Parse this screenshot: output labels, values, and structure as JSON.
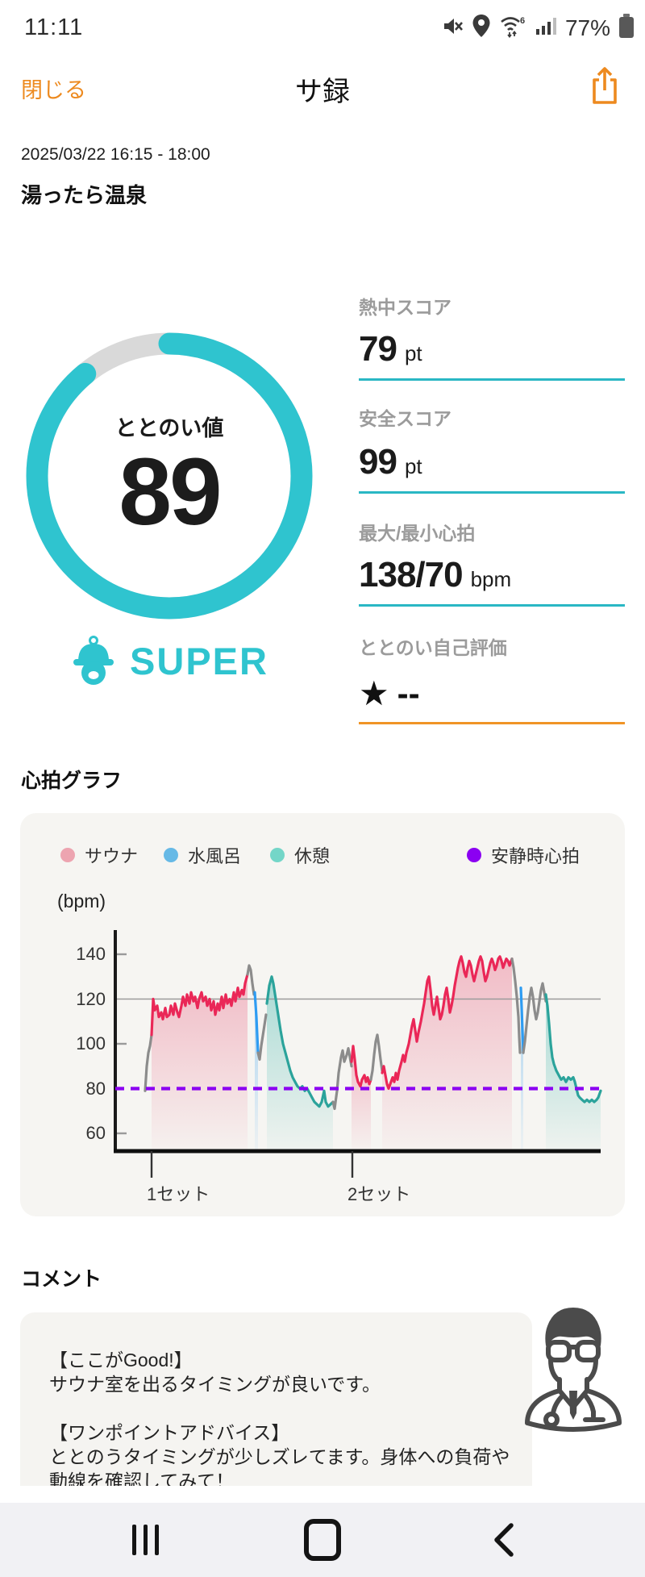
{
  "status_bar": {
    "time": "11:11",
    "battery": "77%"
  },
  "header": {
    "close_label": "閉じる",
    "title": "サ録"
  },
  "session": {
    "datetime": "2025/03/22 16:15 - 18:00",
    "facility": "湯ったら温泉"
  },
  "gauge": {
    "label": "ととのい値",
    "value": "89",
    "percent": 89,
    "rank": "SUPER",
    "ring_color": "#2fc4cf",
    "track_color": "#d9d9d9"
  },
  "stats": [
    {
      "label": "熱中スコア",
      "value": "79",
      "unit": "pt",
      "rule_color": "#2ab7c4"
    },
    {
      "label": "安全スコア",
      "value": "99",
      "unit": "pt",
      "rule_color": "#2ab7c4"
    },
    {
      "label": "最大/最小心拍",
      "value": "138/70",
      "unit": "bpm",
      "rule_color": "#2ab7c4"
    },
    {
      "label": "ととのい自己評価",
      "star": "★",
      "value": "--",
      "unit": "",
      "rule_color": "#f09426"
    }
  ],
  "heart_rate_section": {
    "title": "心拍グラフ"
  },
  "chart_data": {
    "type": "area",
    "title": "心拍グラフ",
    "ylabel": "(bpm)",
    "unit_label": "(bpm)",
    "y_ticks": [
      140,
      120,
      100,
      80,
      60
    ],
    "ylim": [
      52,
      150
    ],
    "threshold_line_bpm": 120,
    "resting_hr_bpm": 80,
    "x_ticks": [
      {
        "label": "1セット",
        "x": 45
      },
      {
        "label": "2セット",
        "x": 294
      }
    ],
    "legend": [
      {
        "label": "サウナ",
        "color": "#eda4b0"
      },
      {
        "label": "水風呂",
        "color": "#66b9e6"
      },
      {
        "label": "休憩",
        "color": "#74d6c8"
      },
      {
        "label": "安静時心拍",
        "color": "#8b00f2"
      }
    ],
    "series_colors": {
      "sauna": "#ea2757",
      "bath": "#2e9cf2",
      "rest": "#2ba39b",
      "transition": "#8c8c8c"
    },
    "fill_colors": {
      "sauna": "#e95d7e",
      "bath": "#49a8ef",
      "rest": "#35b3a8"
    },
    "segments": [
      {
        "kind": "transition",
        "points": [
          [
            37,
            79
          ],
          [
            39,
            90
          ],
          [
            41,
            96
          ],
          [
            43,
            99
          ],
          [
            45,
            104
          ]
        ]
      },
      {
        "kind": "sauna",
        "points": [
          [
            45,
            104
          ],
          [
            47,
            120
          ],
          [
            49,
            115
          ],
          [
            52,
            117
          ],
          [
            54,
            112
          ],
          [
            57,
            114
          ],
          [
            59,
            111
          ],
          [
            62,
            116
          ],
          [
            64,
            112
          ],
          [
            67,
            113
          ],
          [
            69,
            117
          ],
          [
            72,
            113
          ],
          [
            74,
            118
          ],
          [
            77,
            114
          ],
          [
            79,
            112
          ],
          [
            82,
            117
          ],
          [
            84,
            121
          ],
          [
            87,
            117
          ],
          [
            89,
            122
          ],
          [
            92,
            118
          ],
          [
            94,
            123
          ],
          [
            97,
            119
          ],
          [
            99,
            121
          ],
          [
            102,
            116
          ],
          [
            104,
            120
          ],
          [
            107,
            123
          ],
          [
            109,
            119
          ],
          [
            112,
            121
          ],
          [
            114,
            117
          ],
          [
            117,
            120
          ],
          [
            119,
            115
          ],
          [
            122,
            119
          ],
          [
            124,
            113
          ],
          [
            127,
            118
          ],
          [
            129,
            115
          ],
          [
            132,
            121
          ],
          [
            134,
            116
          ],
          [
            137,
            122
          ],
          [
            139,
            118
          ],
          [
            142,
            120
          ],
          [
            144,
            117
          ],
          [
            147,
            123
          ],
          [
            149,
            119
          ],
          [
            152,
            125
          ],
          [
            154,
            121
          ],
          [
            157,
            124
          ],
          [
            159,
            122
          ],
          [
            161,
            127
          ],
          [
            164,
            131
          ]
        ]
      },
      {
        "kind": "transition",
        "points": [
          [
            164,
            131
          ],
          [
            166,
            135
          ],
          [
            168,
            133
          ],
          [
            170,
            127
          ],
          [
            172,
            122
          ]
        ]
      },
      {
        "kind": "bath",
        "points": [
          [
            173,
            123
          ],
          [
            175,
            112
          ],
          [
            176,
            104
          ],
          [
            177,
            96
          ]
        ]
      },
      {
        "kind": "transition",
        "points": [
          [
            177,
            96
          ],
          [
            179,
            93
          ],
          [
            181,
            99
          ],
          [
            184,
            106
          ],
          [
            187,
            113
          ]
        ]
      },
      {
        "kind": "rest",
        "points": [
          [
            188,
            118
          ],
          [
            191,
            126
          ],
          [
            194,
            130
          ],
          [
            196,
            127
          ],
          [
            199,
            120
          ],
          [
            202,
            113
          ],
          [
            205,
            106
          ],
          [
            208,
            100
          ],
          [
            211,
            96
          ],
          [
            214,
            92
          ],
          [
            217,
            88
          ],
          [
            220,
            85
          ],
          [
            223,
            83
          ],
          [
            226,
            81
          ],
          [
            229,
            80
          ],
          [
            232,
            81
          ],
          [
            235,
            79
          ],
          [
            238,
            80
          ],
          [
            241,
            78
          ],
          [
            244,
            76
          ],
          [
            247,
            74
          ],
          [
            250,
            73
          ],
          [
            253,
            72
          ],
          [
            256,
            74
          ],
          [
            259,
            79
          ],
          [
            261,
            74
          ],
          [
            264,
            72
          ],
          [
            267,
            73
          ],
          [
            270,
            74
          ]
        ]
      },
      {
        "kind": "transition",
        "points": [
          [
            270,
            74
          ],
          [
            272,
            71
          ],
          [
            275,
            79
          ],
          [
            277,
            87
          ],
          [
            280,
            94
          ],
          [
            282,
            97
          ],
          [
            284,
            92
          ],
          [
            287,
            95
          ],
          [
            289,
            98
          ],
          [
            291,
            94
          ],
          [
            293,
            90
          ]
        ]
      },
      {
        "kind": "sauna",
        "points": [
          [
            293,
            92
          ],
          [
            295,
            99
          ],
          [
            297,
            93
          ],
          [
            299,
            86
          ],
          [
            301,
            83
          ],
          [
            304,
            81
          ],
          [
            306,
            84
          ],
          [
            309,
            86
          ],
          [
            311,
            83
          ],
          [
            313,
            85
          ],
          [
            315,
            82
          ],
          [
            317,
            84
          ]
        ]
      },
      {
        "kind": "transition",
        "points": [
          [
            317,
            84
          ],
          [
            319,
            88
          ],
          [
            321,
            95
          ],
          [
            323,
            101
          ],
          [
            325,
            104
          ],
          [
            327,
            99
          ],
          [
            329,
            93
          ],
          [
            331,
            88
          ]
        ]
      },
      {
        "kind": "sauna",
        "points": [
          [
            331,
            87
          ],
          [
            333,
            90
          ],
          [
            335,
            86
          ],
          [
            337,
            82
          ],
          [
            339,
            80
          ],
          [
            341,
            82
          ],
          [
            344,
            85
          ],
          [
            346,
            83
          ],
          [
            348,
            87
          ],
          [
            350,
            84
          ],
          [
            352,
            88
          ],
          [
            355,
            92
          ],
          [
            357,
            95
          ],
          [
            359,
            92
          ],
          [
            361,
            96
          ],
          [
            364,
            100
          ],
          [
            366,
            104
          ],
          [
            368,
            108
          ],
          [
            370,
            111
          ],
          [
            372,
            106
          ],
          [
            374,
            101
          ],
          [
            376,
            105
          ],
          [
            379,
            110
          ],
          [
            381,
            114
          ],
          [
            383,
            118
          ],
          [
            385,
            123
          ],
          [
            387,
            128
          ],
          [
            389,
            130
          ],
          [
            391,
            124
          ],
          [
            393,
            117
          ],
          [
            395,
            113
          ],
          [
            397,
            117
          ],
          [
            399,
            121
          ],
          [
            401,
            116
          ],
          [
            403,
            111
          ],
          [
            405,
            113
          ],
          [
            407,
            117
          ],
          [
            409,
            122
          ],
          [
            411,
            125
          ],
          [
            413,
            120
          ],
          [
            415,
            114
          ],
          [
            417,
            117
          ],
          [
            419,
            121
          ],
          [
            421,
            126
          ],
          [
            423,
            130
          ],
          [
            425,
            134
          ],
          [
            427,
            137
          ],
          [
            429,
            139
          ],
          [
            431,
            136
          ],
          [
            433,
            132
          ],
          [
            435,
            130
          ],
          [
            437,
            134
          ],
          [
            439,
            137
          ],
          [
            441,
            135
          ],
          [
            443,
            131
          ],
          [
            445,
            128
          ],
          [
            447,
            131
          ],
          [
            449,
            134
          ],
          [
            451,
            137
          ],
          [
            453,
            139
          ],
          [
            455,
            137
          ],
          [
            457,
            132
          ],
          [
            459,
            128
          ],
          [
            461,
            130
          ],
          [
            463,
            133
          ],
          [
            465,
            136
          ],
          [
            467,
            138
          ],
          [
            469,
            136
          ],
          [
            471,
            133
          ],
          [
            473,
            135
          ],
          [
            475,
            138
          ],
          [
            477,
            139
          ],
          [
            479,
            137
          ],
          [
            481,
            134
          ],
          [
            483,
            136
          ],
          [
            485,
            138
          ],
          [
            487,
            137
          ],
          [
            489,
            135
          ],
          [
            491,
            137
          ],
          [
            492,
            138
          ]
        ]
      },
      {
        "kind": "transition",
        "points": [
          [
            492,
            138
          ],
          [
            494,
            134
          ],
          [
            496,
            128
          ],
          [
            498,
            121
          ],
          [
            500,
            112
          ],
          [
            501,
            103
          ],
          [
            502,
            96
          ]
        ]
      },
      {
        "kind": "bath",
        "points": [
          [
            503,
            125
          ],
          [
            504,
            116
          ],
          [
            505,
            106
          ],
          [
            506,
            96
          ]
        ]
      },
      {
        "kind": "transition",
        "points": [
          [
            506,
            96
          ],
          [
            508,
            101
          ],
          [
            510,
            108
          ],
          [
            512,
            115
          ],
          [
            514,
            121
          ],
          [
            516,
            125
          ],
          [
            518,
            121
          ],
          [
            520,
            115
          ],
          [
            522,
            111
          ],
          [
            524,
            114
          ],
          [
            526,
            119
          ],
          [
            528,
            124
          ],
          [
            530,
            127
          ],
          [
            532,
            123
          ],
          [
            534,
            119
          ]
        ]
      },
      {
        "kind": "rest",
        "points": [
          [
            534,
            122
          ],
          [
            536,
            117
          ],
          [
            538,
            109
          ],
          [
            540,
            100
          ],
          [
            542,
            94
          ],
          [
            544,
            91
          ],
          [
            547,
            88
          ],
          [
            550,
            86
          ],
          [
            553,
            84
          ],
          [
            556,
            85
          ],
          [
            559,
            83
          ],
          [
            562,
            85
          ],
          [
            565,
            84
          ],
          [
            568,
            85
          ],
          [
            570,
            83
          ],
          [
            572,
            80
          ],
          [
            574,
            77
          ],
          [
            576,
            76
          ],
          [
            579,
            75
          ],
          [
            582,
            74
          ],
          [
            585,
            75
          ],
          [
            588,
            74
          ],
          [
            591,
            75
          ],
          [
            594,
            74
          ],
          [
            597,
            75
          ],
          [
            599,
            76
          ],
          [
            602,
            79
          ]
        ]
      }
    ]
  },
  "comment_section": {
    "title": "コメント",
    "lines": [
      "【ここがGood!】",
      "サウナ室を出るタイミングが良いです。",
      "",
      "【ワンポイントアドバイス】",
      "ととのうタイミングが少しズレてます。身体への負荷や",
      "動線を確認してみて！"
    ]
  }
}
